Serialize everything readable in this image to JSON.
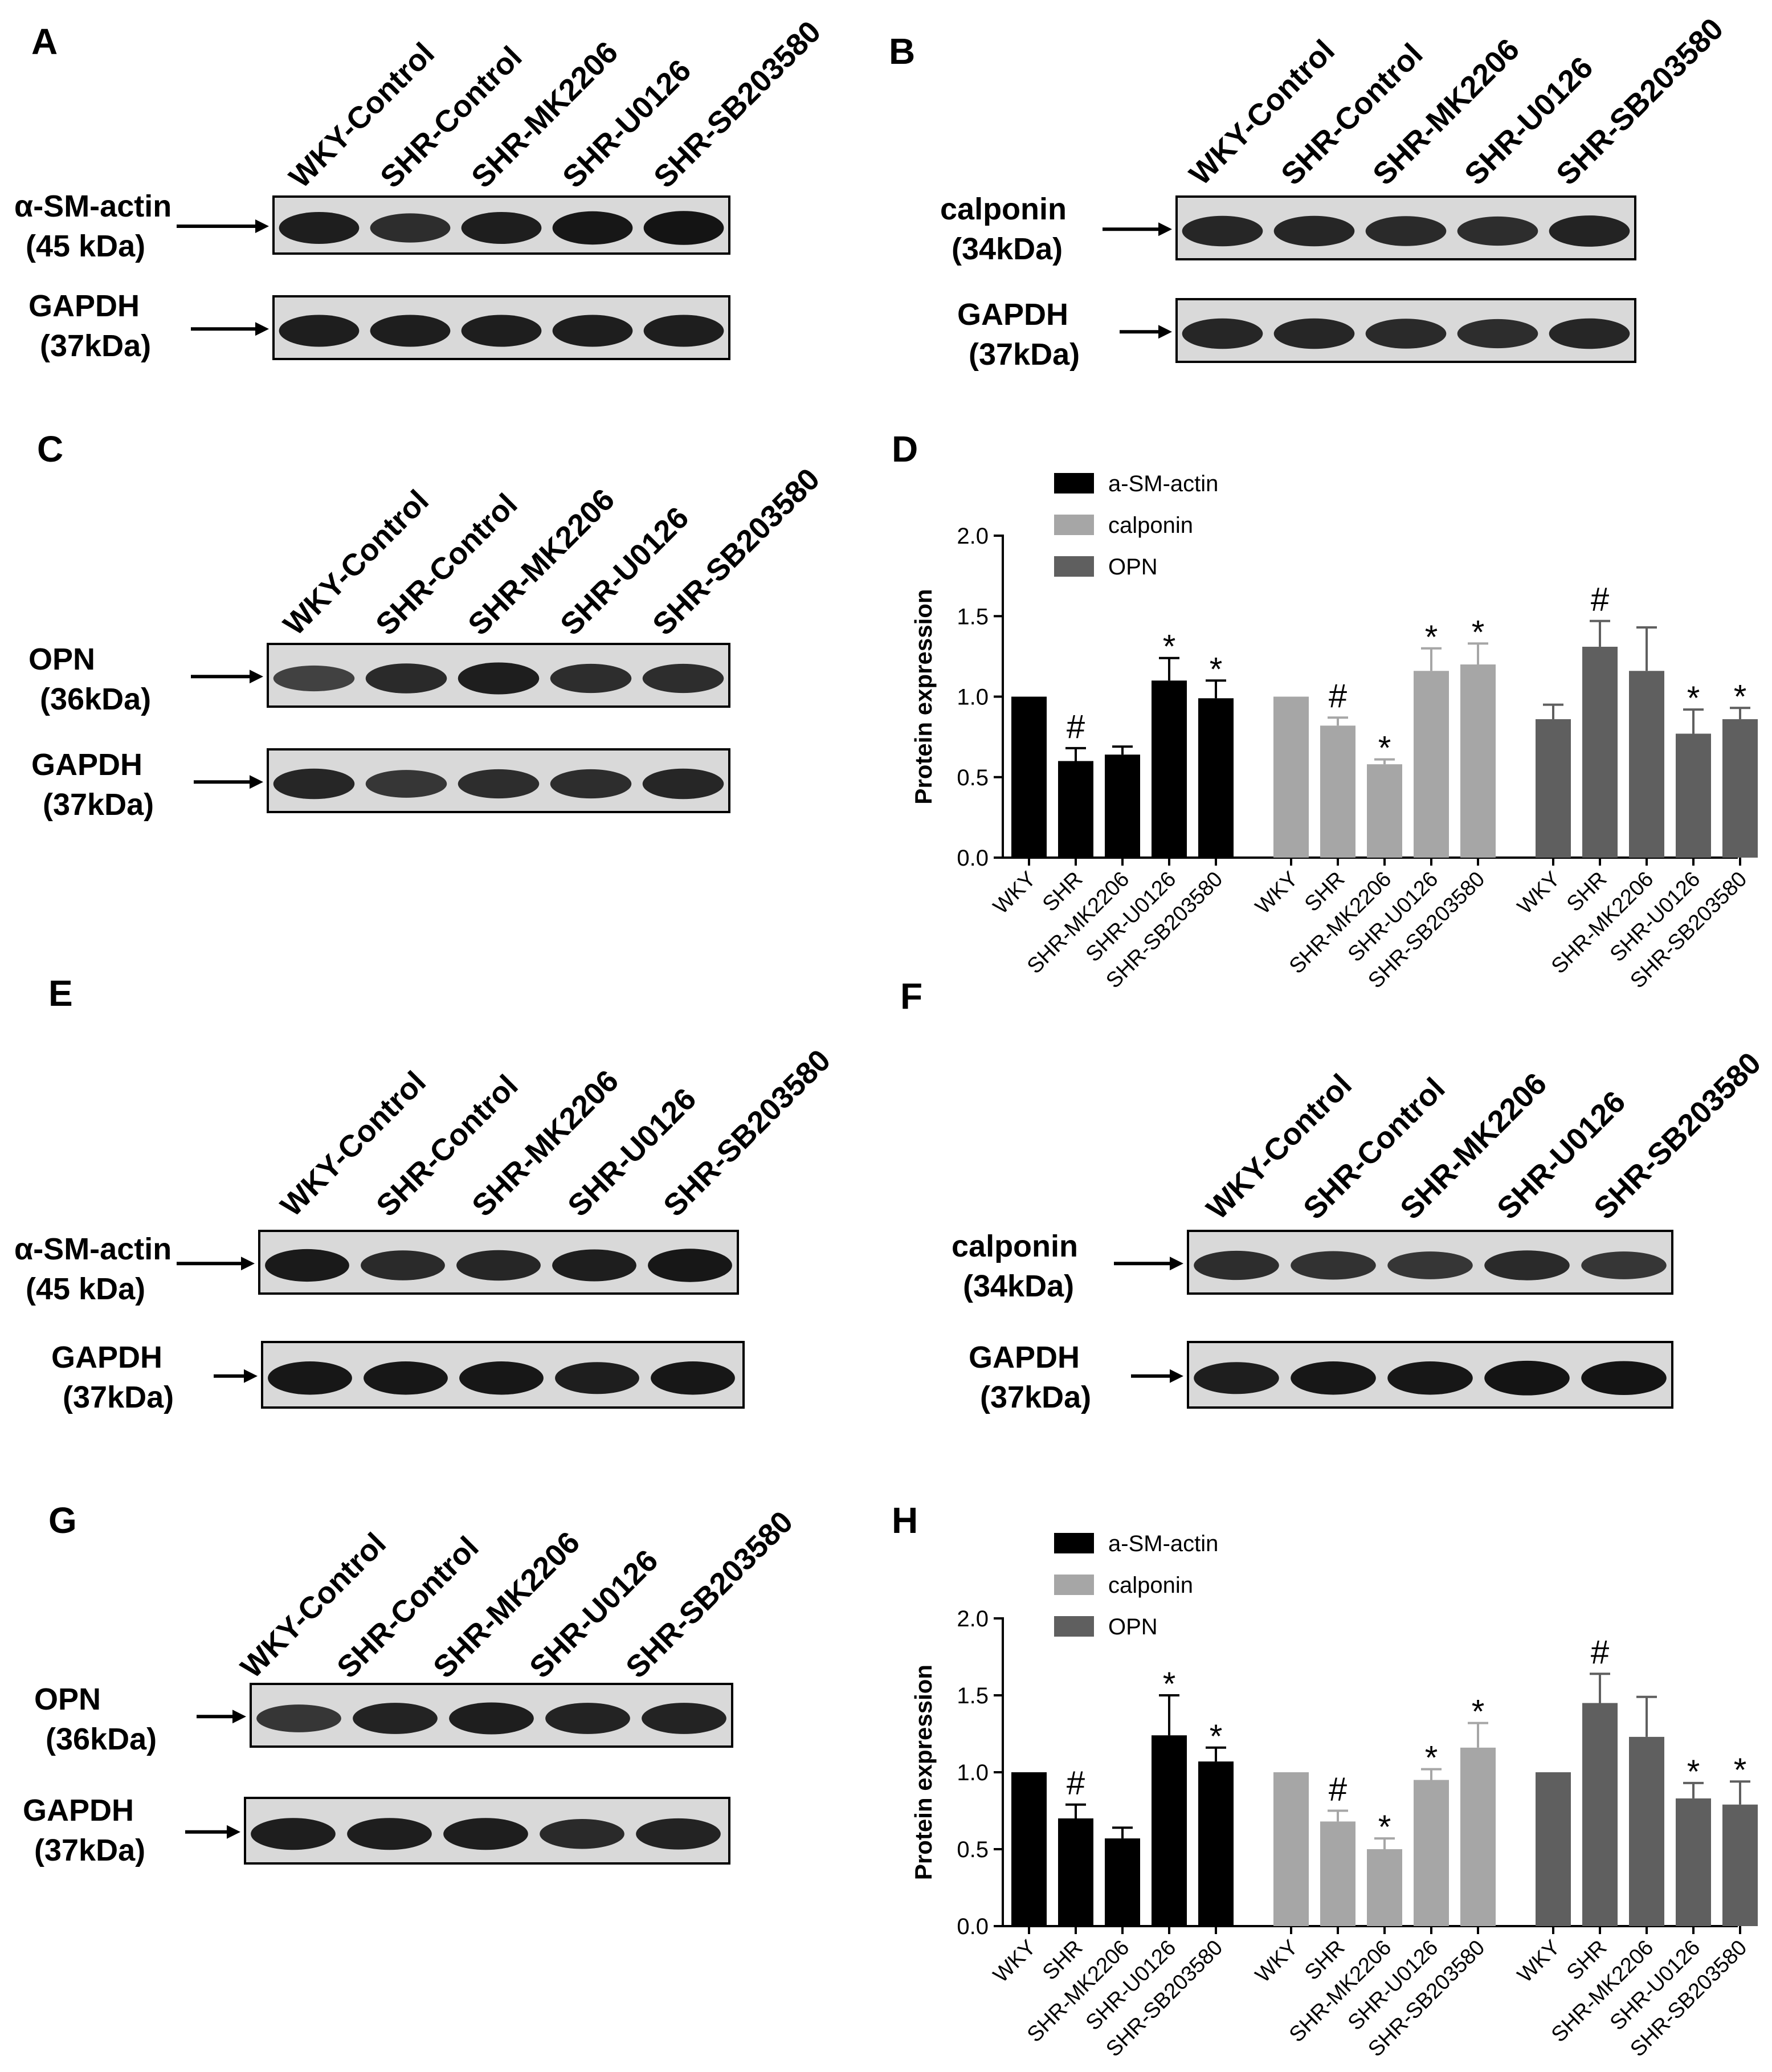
{
  "colors": {
    "alpha_sm_actin": "#000000",
    "calponin": "#a6a6a6",
    "opn": "#5f5f5f",
    "blot_bg": "#d9d9d9",
    "band": "#141414"
  },
  "lane_labels": [
    "WKY-Control",
    "SHR-Control",
    "SHR-MK2206",
    "SHR-U0126",
    "SHR-SB203580"
  ],
  "blot_panels": [
    {
      "id": "A",
      "label": "A",
      "top": {
        "protein": "α-SM-actin",
        "kda": "(45 kDa)"
      },
      "bottom": {
        "protein": "GAPDH",
        "kda": "(37kDa)"
      }
    },
    {
      "id": "B",
      "label": "B",
      "top": {
        "protein": "calponin",
        "kda": "(34kDa)"
      },
      "bottom": {
        "protein": "GAPDH",
        "kda": "(37kDa)"
      }
    },
    {
      "id": "C",
      "label": "C",
      "top": {
        "protein": "OPN",
        "kda": "(36kDa)"
      },
      "bottom": {
        "protein": "GAPDH",
        "kda": "(37kDa)"
      }
    },
    {
      "id": "E",
      "label": "E",
      "top": {
        "protein": "α-SM-actin",
        "kda": "(45 kDa)"
      },
      "bottom": {
        "protein": "GAPDH",
        "kda": "(37kDa)"
      }
    },
    {
      "id": "F",
      "label": "F",
      "top": {
        "protein": "calponin",
        "kda": "(34kDa)"
      },
      "bottom": {
        "protein": "GAPDH",
        "kda": "(37kDa)"
      }
    },
    {
      "id": "G",
      "label": "G",
      "top": {
        "protein": "OPN",
        "kda": "(36kDa)"
      },
      "bottom": {
        "protein": "GAPDH",
        "kda": "(37kDa)"
      }
    }
  ],
  "chart_data": [
    {
      "panel": "D",
      "type": "bar",
      "title": "",
      "ylabel": "Protein expression",
      "xlabel": "",
      "ylim": [
        0,
        2.0
      ],
      "yticks": [
        "0.0",
        "0.5",
        "1.0",
        "1.5",
        "2.0"
      ],
      "categories": [
        "WKY",
        "SHR",
        "SHR-MK2206",
        "SHR-U0126",
        "SHR-SB203580"
      ],
      "legend_position": "top-left",
      "series": [
        {
          "name": "a-SM-actin",
          "values": [
            1.0,
            0.6,
            0.64,
            1.1,
            0.99
          ],
          "errors": [
            0,
            0.08,
            0.05,
            0.14,
            0.11
          ],
          "marks": [
            "",
            "#",
            "",
            "*",
            "*"
          ]
        },
        {
          "name": "calponin",
          "values": [
            1.0,
            0.82,
            0.58,
            1.16,
            1.2
          ],
          "errors": [
            0,
            0.05,
            0.03,
            0.14,
            0.13
          ],
          "marks": [
            "",
            "#",
            "*",
            "*",
            "*"
          ]
        },
        {
          "name": "OPN",
          "values": [
            0.86,
            1.31,
            1.16,
            0.77,
            0.86
          ],
          "errors": [
            0.09,
            0.16,
            0.27,
            0.15,
            0.07
          ],
          "marks": [
            "",
            "#",
            "",
            "*",
            "*"
          ]
        }
      ]
    },
    {
      "panel": "H",
      "type": "bar",
      "title": "",
      "ylabel": "Protein expression",
      "xlabel": "",
      "ylim": [
        0,
        2.0
      ],
      "yticks": [
        "0.0",
        "0.5",
        "1.0",
        "1.5",
        "2.0"
      ],
      "categories": [
        "WKY",
        "SHR",
        "SHR-MK2206",
        "SHR-U0126",
        "SHR-SB203580"
      ],
      "legend_position": "top-left",
      "series": [
        {
          "name": "a-SM-actin",
          "values": [
            1.0,
            0.7,
            0.57,
            1.24,
            1.07
          ],
          "errors": [
            0,
            0.09,
            0.07,
            0.26,
            0.09
          ],
          "marks": [
            "",
            "#",
            "",
            "*",
            "*"
          ]
        },
        {
          "name": "calponin",
          "values": [
            1.0,
            0.68,
            0.5,
            0.95,
            1.16
          ],
          "errors": [
            0,
            0.07,
            0.07,
            0.07,
            0.16
          ],
          "marks": [
            "",
            "#",
            "*",
            "*",
            "*"
          ]
        },
        {
          "name": "OPN",
          "values": [
            1.0,
            1.45,
            1.23,
            0.83,
            0.79
          ],
          "errors": [
            0,
            0.19,
            0.26,
            0.1,
            0.15
          ],
          "marks": [
            "",
            "#",
            "",
            "*",
            "*"
          ]
        }
      ]
    }
  ]
}
